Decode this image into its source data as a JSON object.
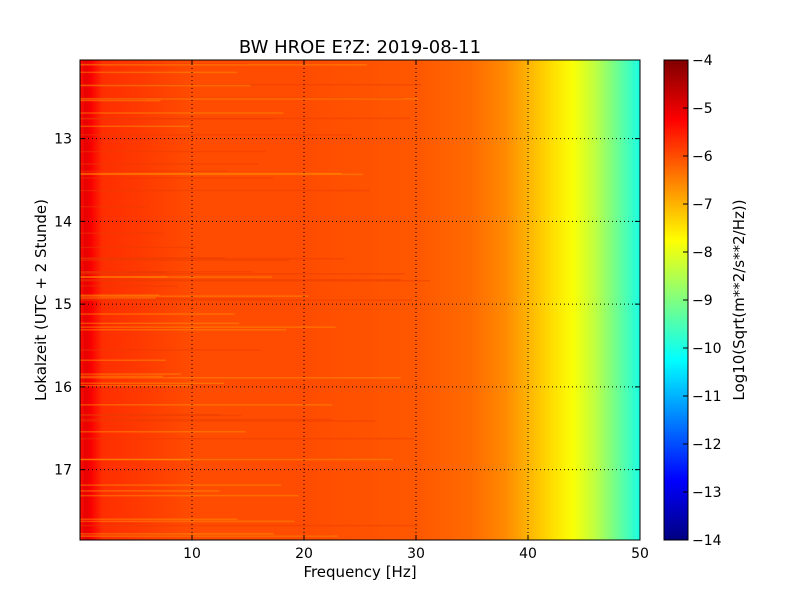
{
  "chart_data": {
    "type": "heatmap",
    "title": "BW HROE E?Z: 2019-08-11",
    "xlabel": "Frequency [Hz]",
    "ylabel": "Lokalzeit (UTC + 2 Stunde)",
    "colorbar_label": "Log10(Sqrt(m**2/s**2/Hz))",
    "xlim": [
      0,
      50
    ],
    "ylim": [
      12.05,
      17.85
    ],
    "y_inverted": true,
    "x_ticks": [
      10,
      20,
      30,
      40,
      50
    ],
    "x_tick_labels": [
      "10",
      "20",
      "30",
      "40",
      "50"
    ],
    "y_ticks": [
      13,
      14,
      15,
      16,
      17
    ],
    "y_tick_labels": [
      "13",
      "14",
      "15",
      "16",
      "17"
    ],
    "color_range": [
      -14,
      -4
    ],
    "colorbar_ticks": [
      -4,
      -5,
      -6,
      -7,
      -8,
      -9,
      -10,
      -11,
      -12,
      -13,
      -14
    ],
    "colorbar_tick_labels": [
      "−4",
      "−5",
      "−6",
      "−7",
      "−8",
      "−9",
      "−10",
      "−11",
      "−12",
      "−13",
      "−14"
    ],
    "colormap": "jet",
    "grid": true,
    "spectrum_profile": {
      "frequency_hz": [
        0,
        0.5,
        1,
        2,
        5,
        10,
        20,
        30,
        35,
        38,
        40,
        42,
        44,
        46,
        48,
        50
      ],
      "log10_amplitude": [
        -5.4,
        -5.0,
        -5.2,
        -5.7,
        -5.8,
        -6.0,
        -6.0,
        -6.1,
        -6.3,
        -6.6,
        -7.0,
        -7.4,
        -7.8,
        -8.4,
        -9.2,
        -10.0
      ]
    }
  }
}
